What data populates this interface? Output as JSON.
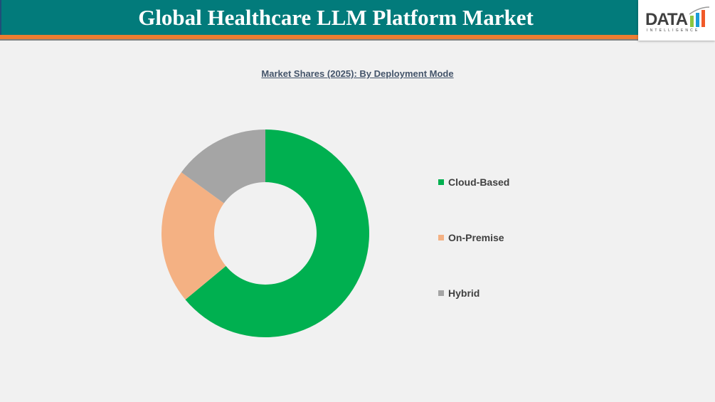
{
  "header": {
    "title": "Global Healthcare LLM Platform Market",
    "logo_text": "DATA",
    "logo_subtext": "INTELLIGENCE"
  },
  "colors": {
    "header_bg": "#027b7b",
    "header_stripe": "#ed7d31"
  },
  "chart_data": {
    "type": "pie",
    "donut": true,
    "title": "Market Shares (2025): By Deployment Mode",
    "legend_position": "right",
    "categories": [
      "Cloud-Based",
      "On-Premise",
      "Hybrid"
    ],
    "values": [
      64,
      21,
      15
    ],
    "colors": [
      "#00b050",
      "#f4b183",
      "#a5a5a5"
    ]
  }
}
